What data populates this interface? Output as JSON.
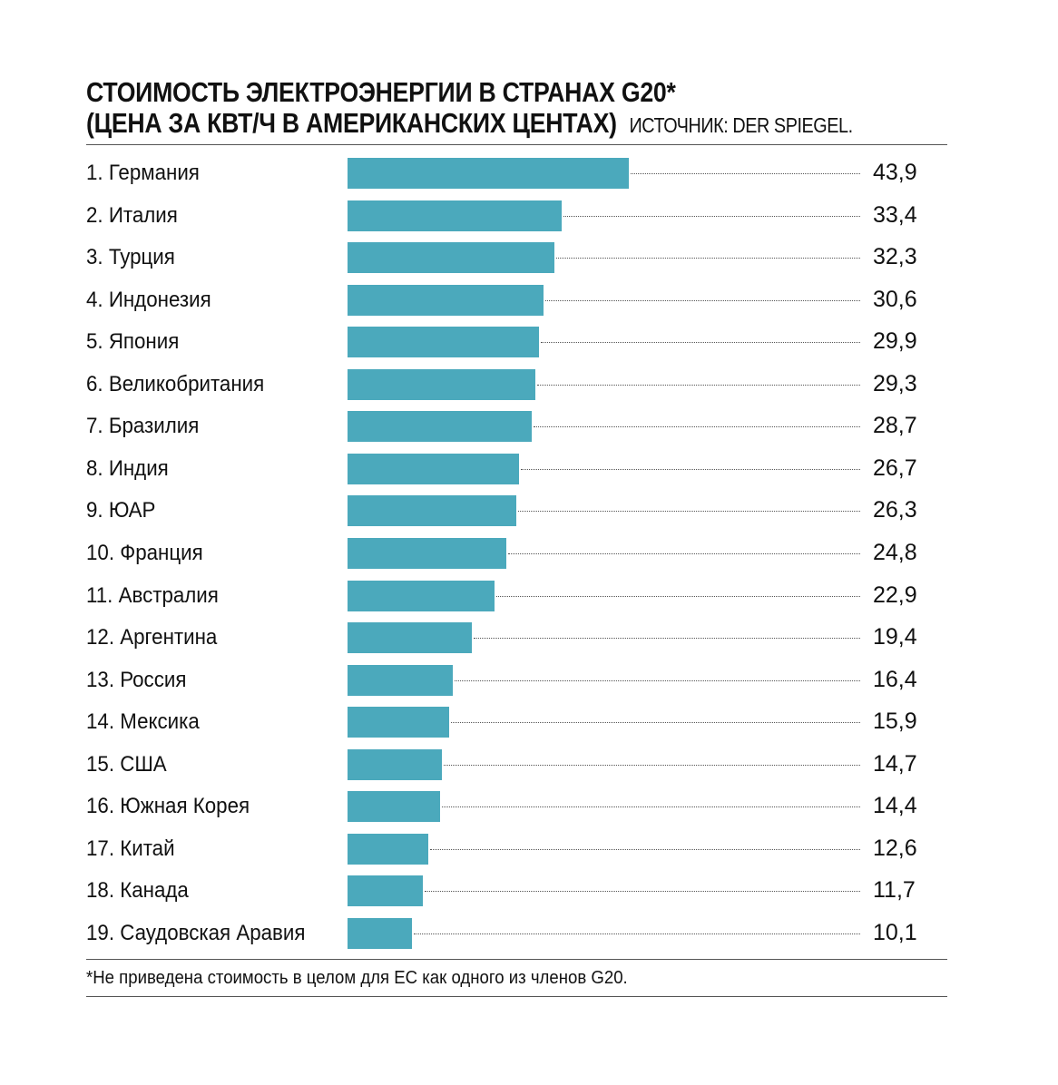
{
  "chart_data": {
    "type": "bar",
    "orientation": "horizontal",
    "title": "СТОИМОСТЬ ЭЛЕКТРОЭНЕРГИИ В СТРАНАХ G20*",
    "subtitle": "(ЦЕНА ЗА КВТ/Ч В АМЕРИКАНСКИХ ЦЕНТАХ)",
    "source": "ИСТОЧНИК: DER SPIEGEL.",
    "footnote": "*Не приведена стоимость в целом для ЕС как одного из членов G20.",
    "categories": [
      "1. Германия",
      "2. Италия",
      "3. Турция",
      "4. Индонезия",
      "5. Япония",
      "6. Великобритания",
      "7. Бразилия",
      "8. Индия",
      "9. ЮАР",
      "10. Франция",
      "11. Австралия",
      "12. Аргентина",
      "13. Россия",
      "14. Мексика",
      "15. США",
      "16. Южная Корея",
      "17. Китай",
      "18. Канада",
      "19. Саудовская Аравия"
    ],
    "values": [
      43.9,
      33.4,
      32.3,
      30.6,
      29.9,
      29.3,
      28.7,
      26.7,
      26.3,
      24.8,
      22.9,
      19.4,
      16.4,
      15.9,
      14.7,
      14.4,
      12.6,
      11.7,
      10.1
    ],
    "value_labels": [
      "43,9",
      "33,4",
      "32,3",
      "30,6",
      "29,9",
      "29,3",
      "28,7",
      "26,7",
      "26,3",
      "24,8",
      "22,9",
      "19,4",
      "16,4",
      "15,9",
      "14,7",
      "14,4",
      "12,6",
      "11,7",
      "10,1"
    ],
    "xlim": [
      0,
      50
    ],
    "grid": false,
    "bar_color": "#4BA9BC"
  }
}
